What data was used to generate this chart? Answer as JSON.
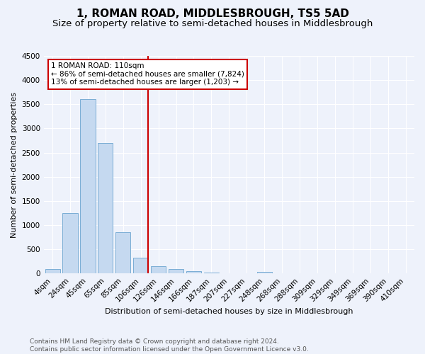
{
  "title": "1, ROMAN ROAD, MIDDLESBROUGH, TS5 5AD",
  "subtitle": "Size of property relative to semi-detached houses in Middlesbrough",
  "xlabel": "Distribution of semi-detached houses by size in Middlesbrough",
  "ylabel": "Number of semi-detached properties",
  "categories": [
    "4sqm",
    "24sqm",
    "45sqm",
    "65sqm",
    "85sqm",
    "106sqm",
    "126sqm",
    "146sqm",
    "166sqm",
    "187sqm",
    "207sqm",
    "227sqm",
    "248sqm",
    "268sqm",
    "288sqm",
    "309sqm",
    "329sqm",
    "349sqm",
    "369sqm",
    "390sqm",
    "410sqm"
  ],
  "values": [
    90,
    1250,
    3610,
    2700,
    850,
    330,
    150,
    90,
    50,
    20,
    10,
    5,
    40,
    3,
    2,
    1,
    0,
    0,
    0,
    0,
    0
  ],
  "bar_color": "#c5d9f0",
  "bar_edge_color": "#7aadd4",
  "vline_color": "#cc0000",
  "annotation_text": "1 ROMAN ROAD: 110sqm\n← 86% of semi-detached houses are smaller (7,824)\n13% of semi-detached houses are larger (1,203) →",
  "annotation_box_facecolor": "white",
  "annotation_box_edgecolor": "#cc0000",
  "ylim": [
    0,
    4500
  ],
  "yticks": [
    0,
    500,
    1000,
    1500,
    2000,
    2500,
    3000,
    3500,
    4000,
    4500
  ],
  "footer_text": "Contains HM Land Registry data © Crown copyright and database right 2024.\nContains public sector information licensed under the Open Government Licence v3.0.",
  "bg_color": "#eef2fb",
  "grid_color": "#ffffff",
  "title_fontsize": 11,
  "subtitle_fontsize": 9.5,
  "axis_fontsize": 8,
  "tick_fontsize": 7.5,
  "footer_fontsize": 6.5,
  "vline_bin_index": 5
}
